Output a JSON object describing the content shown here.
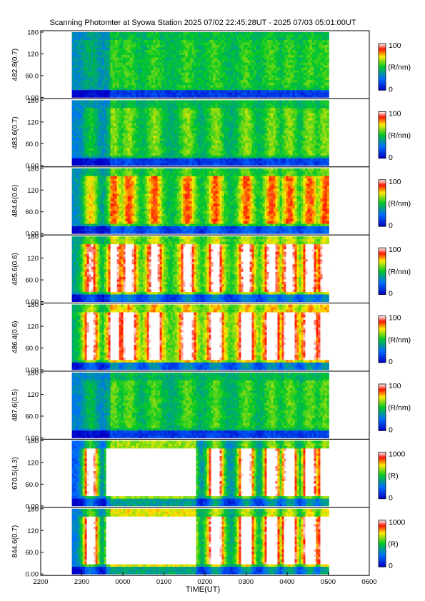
{
  "chart_data": {
    "type": "heatmap",
    "title": "Scanning Photomter at Syowa Station 2025 07/02 22:45:28UT - 2025 07/03 05:01:00UT",
    "xlabel": "TIME(UT)",
    "x_ticks": [
      "2200",
      "2300",
      "0000",
      "0100",
      "0200",
      "0300",
      "0400",
      "0500",
      "0600"
    ],
    "xlim_hours": [
      22,
      30
    ],
    "data_time_range_hours": [
      22.758,
      29.017
    ],
    "y_ticks": [
      "0.00",
      "60.0",
      "120",
      "180"
    ],
    "ylim": [
      0,
      180
    ],
    "colormap": [
      "blue",
      "green",
      "yellow",
      "red",
      "white"
    ],
    "panels": [
      {
        "label": "482.8(0.7)",
        "cb_max": "100",
        "cb_min": "0",
        "cb_unit": "(R/nm)",
        "level": 0.45,
        "peak": 0.55
      },
      {
        "label": "483.6(0.7)",
        "cb_max": "100",
        "cb_min": "0",
        "cb_unit": "(R/nm)",
        "level": 0.42,
        "peak": 0.62
      },
      {
        "label": "484.6(0.6)",
        "cb_max": "100",
        "cb_min": "0",
        "cb_unit": "(R/nm)",
        "level": 0.45,
        "peak": 0.85
      },
      {
        "label": "485.6(0.6)",
        "cb_max": "100",
        "cb_min": "0",
        "cb_unit": "(R/nm)",
        "level": 0.5,
        "peak": 1.1
      },
      {
        "label": "486.4(0.6)",
        "cb_max": "100",
        "cb_min": "0",
        "cb_unit": "(R/nm)",
        "level": 0.55,
        "peak": 1.2
      },
      {
        "label": "487.6(0.5)",
        "cb_max": "100",
        "cb_min": "0",
        "cb_unit": "(R/nm)",
        "level": 0.42,
        "peak": 0.58
      },
      {
        "label": "670.5(4.3)",
        "cb_max": "1000",
        "cb_min": "0",
        "cb_unit": "(R)",
        "level": 0.32,
        "peak": 1.25
      },
      {
        "label": "844.6(0.7)",
        "cb_max": "1000",
        "cb_min": "0",
        "cb_unit": "(R)",
        "level": 0.4,
        "peak": 1.3
      }
    ]
  }
}
